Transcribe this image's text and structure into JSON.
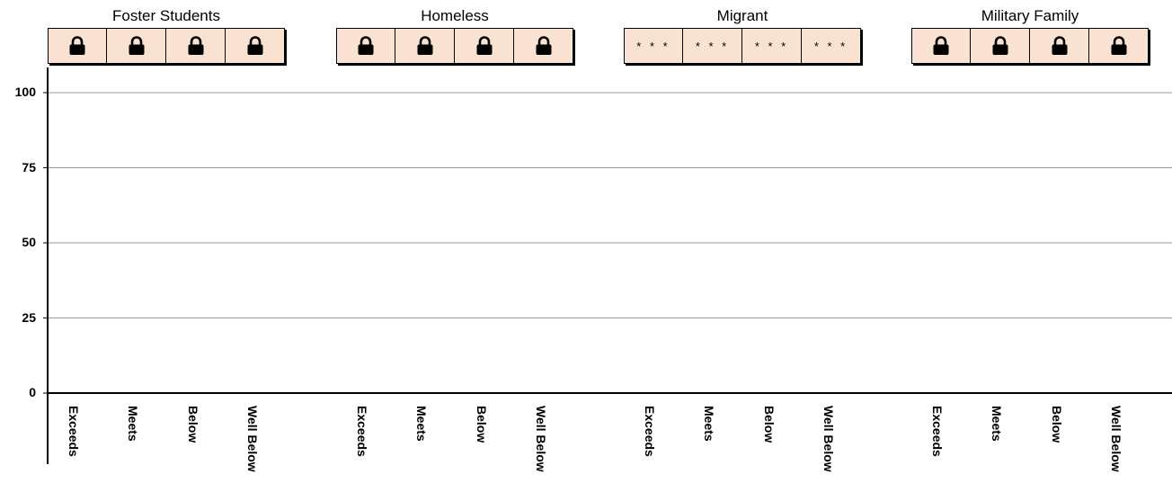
{
  "chart_data": {
    "type": "bar",
    "groups": [
      {
        "name": "Foster Students",
        "cells": [
          "lock",
          "lock",
          "lock",
          "lock"
        ]
      },
      {
        "name": "Homeless",
        "cells": [
          "lock",
          "lock",
          "lock",
          "lock"
        ]
      },
      {
        "name": "Migrant",
        "cells": [
          "* * *",
          "* * *",
          "* * *",
          "* * *"
        ]
      },
      {
        "name": "Military Family",
        "cells": [
          "lock",
          "lock",
          "lock",
          "lock"
        ]
      }
    ],
    "categories": [
      "Exceeds",
      "Meets",
      "Below",
      "Well Below"
    ],
    "ylim": [
      0,
      100
    ],
    "yticks": [
      0,
      25,
      50,
      75,
      100
    ],
    "ytick_labels": [
      "0",
      "25",
      "50",
      "75",
      "100"
    ],
    "grid": true,
    "colors": {
      "cell_fill": "#f9e2d2",
      "border": "#000000",
      "grid": "#999999"
    }
  }
}
